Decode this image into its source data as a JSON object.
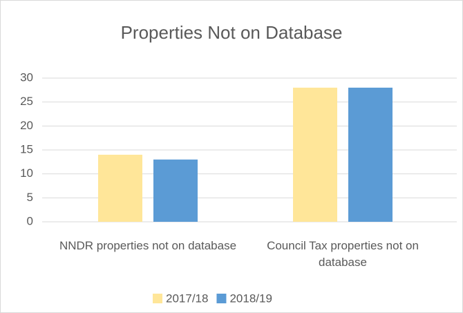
{
  "chart_data": {
    "type": "bar",
    "title": "Properties Not on Database",
    "categories": [
      "NNDR properties not on database",
      "Council Tax properties not on database"
    ],
    "series": [
      {
        "name": "2017/18",
        "color": "#ffe699",
        "values": [
          14,
          28
        ]
      },
      {
        "name": "2018/19",
        "color": "#5b9bd5",
        "values": [
          13,
          28
        ]
      }
    ],
    "ylim": [
      0,
      30
    ],
    "yticks": [
      0,
      5,
      10,
      15,
      20,
      25,
      30
    ],
    "grid": true,
    "legend": "bottom"
  }
}
